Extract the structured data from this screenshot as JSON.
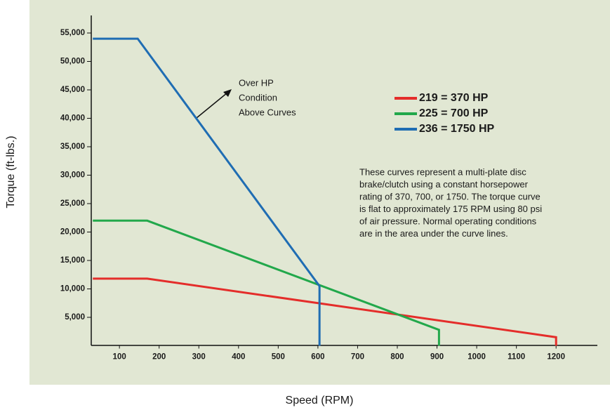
{
  "chart_data": {
    "type": "line",
    "xlabel": "Speed  (RPM)",
    "ylabel": "Torque (ft-lbs.)",
    "series": [
      {
        "name": "219 = 370 HP",
        "color": "#e42d2a",
        "x": [
          33,
          170,
          1200,
          1200
        ],
        "values": [
          11800,
          11800,
          1500,
          0
        ]
      },
      {
        "name": "225 = 700 HP",
        "color": "#22a84b",
        "x": [
          33,
          170,
          905,
          905
        ],
        "values": [
          22000,
          22000,
          2800,
          0
        ]
      },
      {
        "name": "236 = 1750 HP",
        "color": "#1f6db3",
        "x": [
          33,
          146,
          604,
          604
        ],
        "values": [
          54000,
          54000,
          10500,
          0
        ]
      }
    ],
    "xlim": [
      29,
      1304
    ],
    "ylim": [
      0,
      58000
    ],
    "xticks": [
      100,
      200,
      300,
      400,
      500,
      600,
      700,
      800,
      900,
      1000,
      1100,
      1200
    ],
    "yticks": [
      {
        "value": 5000,
        "label": "5,000"
      },
      {
        "value": 10000,
        "label": "10,000"
      },
      {
        "value": 15000,
        "label": "15,000"
      },
      {
        "value": 20000,
        "label": "20,000"
      },
      {
        "value": 25000,
        "label": "25,000"
      },
      {
        "value": 30000,
        "label": "30,000"
      },
      {
        "value": 35000,
        "label": "35,000"
      },
      {
        "value": 40000,
        "label": "40,000"
      },
      {
        "value": 45000,
        "label": "45,000"
      },
      {
        "value": 50000,
        "label": "50,000"
      },
      {
        "value": 55000,
        "label": "55,000"
      }
    ],
    "annotation": [
      "Over HP",
      "Condition",
      "Above Curves"
    ],
    "note": [
      "These curves represent a multi-plate disc",
      "brake/clutch using a constant horsepower",
      "rating of 370, 700, or 1750. The torque curve",
      "is flat to approximately 175 RPM using 80 psi",
      "of air pressure. Normal operating conditions",
      "are in the area under the curve lines."
    ],
    "grid": false
  }
}
